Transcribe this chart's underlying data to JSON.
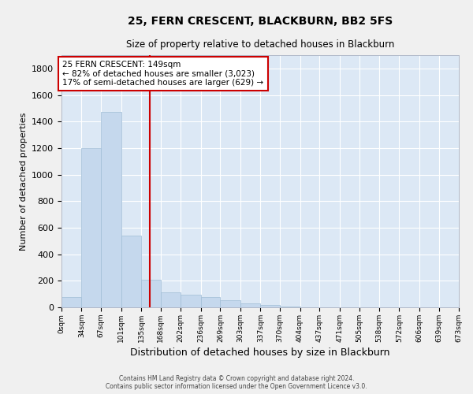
{
  "title": "25, FERN CRESCENT, BLACKBURN, BB2 5FS",
  "subtitle": "Size of property relative to detached houses in Blackburn",
  "xlabel": "Distribution of detached houses by size in Blackburn",
  "ylabel": "Number of detached properties",
  "bar_color": "#c5d8ed",
  "bar_edge_color": "#a0bdd6",
  "background_color": "#dce8f5",
  "grid_color": "#ffffff",
  "bin_edges": [
    0,
    34,
    67,
    101,
    135,
    168,
    202,
    236,
    269,
    303,
    337,
    370,
    404,
    437,
    471,
    505,
    538,
    572,
    606,
    639,
    673
  ],
  "bin_labels": [
    "0sqm",
    "34sqm",
    "67sqm",
    "101sqm",
    "135sqm",
    "168sqm",
    "202sqm",
    "236sqm",
    "269sqm",
    "303sqm",
    "337sqm",
    "370sqm",
    "404sqm",
    "437sqm",
    "471sqm",
    "505sqm",
    "538sqm",
    "572sqm",
    "606sqm",
    "639sqm",
    "673sqm"
  ],
  "bar_heights": [
    80,
    1200,
    1470,
    540,
    210,
    110,
    95,
    75,
    55,
    30,
    20,
    5,
    0,
    0,
    0,
    0,
    0,
    0,
    0,
    0
  ],
  "ylim": [
    0,
    1900
  ],
  "yticks": [
    0,
    200,
    400,
    600,
    800,
    1000,
    1200,
    1400,
    1600,
    1800
  ],
  "property_line_x": 149,
  "property_line_color": "#cc0000",
  "annotation_text_line1": "25 FERN CRESCENT: 149sqm",
  "annotation_text_line2": "← 82% of detached houses are smaller (3,023)",
  "annotation_text_line3": "17% of semi-detached houses are larger (629) →",
  "annotation_box_color": "#ffffff",
  "annotation_box_edge_color": "#cc0000",
  "footer_line1": "Contains HM Land Registry data © Crown copyright and database right 2024.",
  "footer_line2": "Contains public sector information licensed under the Open Government Licence v3.0."
}
